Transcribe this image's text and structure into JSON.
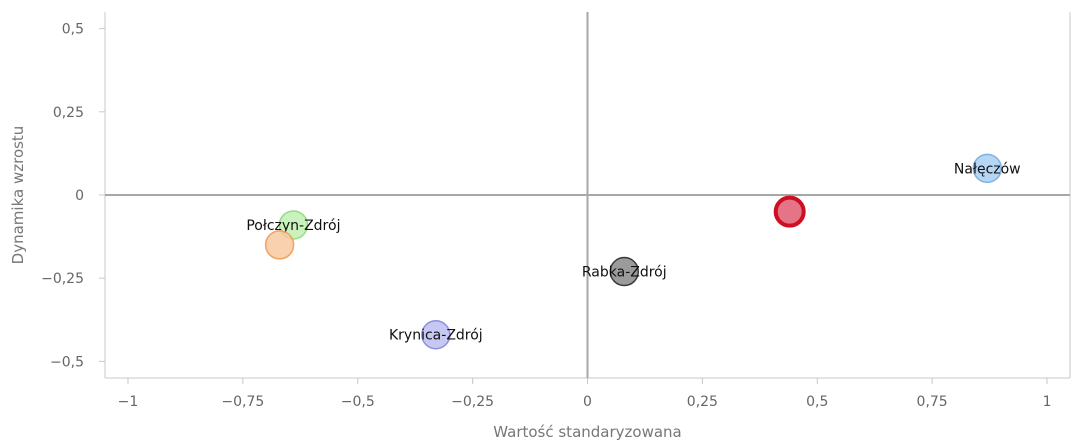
{
  "chart_data": {
    "type": "scatter",
    "xlabel": "Wartość standaryzowana",
    "ylabel": "Dynamika wzrostu",
    "xlim": [
      -1.05,
      1.05
    ],
    "ylim": [
      -0.55,
      0.55
    ],
    "x_ticks": [
      {
        "value": -1,
        "label": "−1"
      },
      {
        "value": -0.75,
        "label": "−0,75"
      },
      {
        "value": -0.5,
        "label": "−0,5"
      },
      {
        "value": -0.25,
        "label": "−0,25"
      },
      {
        "value": 0,
        "label": "0"
      },
      {
        "value": 0.25,
        "label": "0,25"
      },
      {
        "value": 0.5,
        "label": "0,5"
      },
      {
        "value": 0.75,
        "label": "0,75"
      },
      {
        "value": 1,
        "label": "1"
      }
    ],
    "y_ticks": [
      {
        "value": 0.5,
        "label": "0,5"
      },
      {
        "value": 0.25,
        "label": "0,25"
      },
      {
        "value": 0,
        "label": "0"
      },
      {
        "value": -0.25,
        "label": "−0,25"
      },
      {
        "value": -0.5,
        "label": "−0,5"
      }
    ],
    "grid": false,
    "reference_lines": {
      "x": 0,
      "y": 0
    },
    "points": [
      {
        "label": "Nałęczów",
        "x": 0.87,
        "y": 0.08,
        "fill": "#a8cff2",
        "stroke": "#7eb3e4",
        "highlighted": false
      },
      {
        "label": "",
        "x": 0.44,
        "y": -0.05,
        "fill": "#e46d7f",
        "stroke": "#cc1024",
        "highlighted": true
      },
      {
        "label": "Połczyn-Zdrój",
        "x": -0.64,
        "y": -0.09,
        "fill": "#bff0b0",
        "stroke": "#96db85",
        "highlighted": false
      },
      {
        "label": "",
        "x": -0.67,
        "y": -0.15,
        "fill": "#f8c9a0",
        "stroke": "#f0a261",
        "highlighted": false
      },
      {
        "label": "Rabka-Zdrój",
        "x": 0.08,
        "y": -0.23,
        "fill": "#8a8a8a",
        "stroke": "#3a3a3a",
        "highlighted": false
      },
      {
        "label": "Krynica-Zdrój",
        "x": -0.33,
        "y": -0.42,
        "fill": "#bdbdf2",
        "stroke": "#8f8fdf",
        "highlighted": false
      }
    ]
  }
}
